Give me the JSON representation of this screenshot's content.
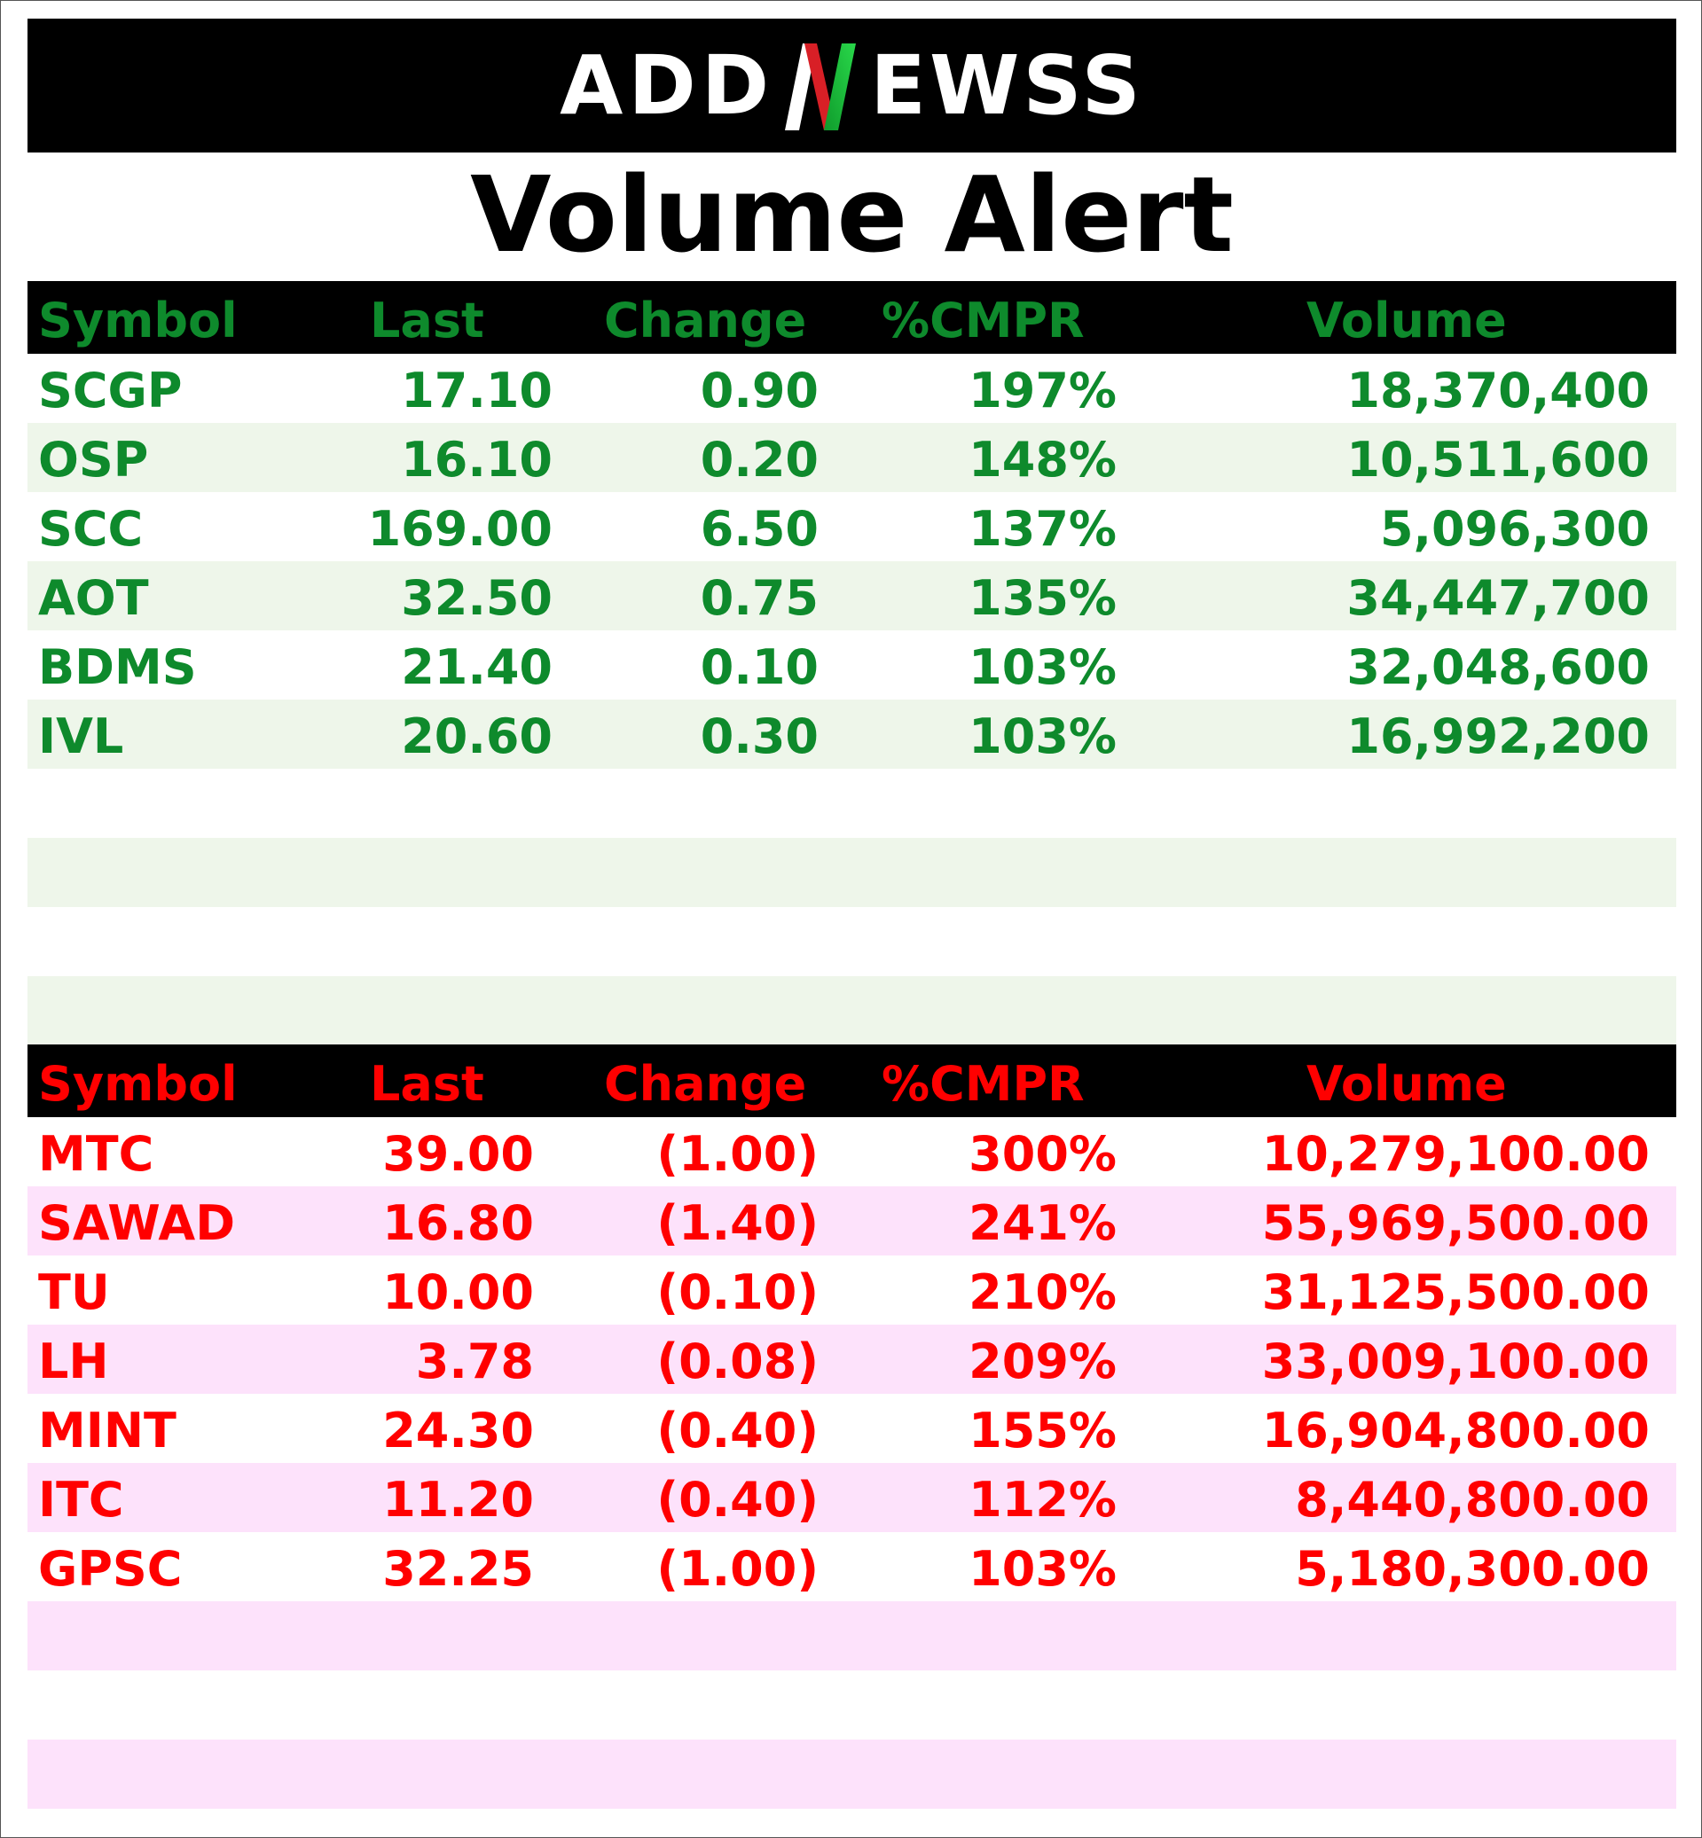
{
  "logo": {
    "text_left": "ADD",
    "text_right": "EWSS",
    "letter_n": "N",
    "colors": {
      "green": "#16b936",
      "red": "#d81f26",
      "white": "#ffffff"
    }
  },
  "title": "Volume Alert",
  "headers": {
    "symbol": "Symbol",
    "last": "Last",
    "change": "Change",
    "cmpr": "%CMPR",
    "volume": "Volume"
  },
  "gainers": {
    "color": "#0e8a2c",
    "row_tint": "#eef6ea",
    "rows": [
      {
        "symbol": "SCGP",
        "last": "17.10",
        "change": "0.90",
        "cmpr": "197%",
        "volume": "18,370,400"
      },
      {
        "symbol": "OSP",
        "last": "16.10",
        "change": "0.20",
        "cmpr": "148%",
        "volume": "10,511,600"
      },
      {
        "symbol": "SCC",
        "last": "169.00",
        "change": "6.50",
        "cmpr": "137%",
        "volume": "5,096,300"
      },
      {
        "symbol": "AOT",
        "last": "32.50",
        "change": "0.75",
        "cmpr": "135%",
        "volume": "34,447,700"
      },
      {
        "symbol": "BDMS",
        "last": "21.40",
        "change": "0.10",
        "cmpr": "103%",
        "volume": "32,048,600"
      },
      {
        "symbol": "IVL",
        "last": "20.60",
        "change": "0.30",
        "cmpr": "103%",
        "volume": "16,992,200"
      },
      {
        "symbol": "",
        "last": "",
        "change": "",
        "cmpr": "",
        "volume": ""
      },
      {
        "symbol": "",
        "last": "",
        "change": "",
        "cmpr": "",
        "volume": ""
      },
      {
        "symbol": "",
        "last": "",
        "change": "",
        "cmpr": "",
        "volume": ""
      },
      {
        "symbol": "",
        "last": "",
        "change": "",
        "cmpr": "",
        "volume": ""
      }
    ]
  },
  "losers": {
    "color": "#ff0000",
    "row_tint": "#fde2fb",
    "rows": [
      {
        "symbol": "MTC",
        "last": "39.00",
        "change": "(1.00)",
        "cmpr": "300%",
        "volume": "10,279,100.00"
      },
      {
        "symbol": "SAWAD",
        "last": "16.80",
        "change": "(1.40)",
        "cmpr": "241%",
        "volume": "55,969,500.00"
      },
      {
        "symbol": "TU",
        "last": "10.00",
        "change": "(0.10)",
        "cmpr": "210%",
        "volume": "31,125,500.00"
      },
      {
        "symbol": "LH",
        "last": "3.78",
        "change": "(0.08)",
        "cmpr": "209%",
        "volume": "33,009,100.00"
      },
      {
        "symbol": "MINT",
        "last": "24.30",
        "change": "(0.40)",
        "cmpr": "155%",
        "volume": "16,904,800.00"
      },
      {
        "symbol": "ITC",
        "last": "11.20",
        "change": "(0.40)",
        "cmpr": "112%",
        "volume": "8,440,800.00"
      },
      {
        "symbol": "GPSC",
        "last": "32.25",
        "change": "(1.00)",
        "cmpr": "103%",
        "volume": "5,180,300.00"
      },
      {
        "symbol": "",
        "last": "",
        "change": "",
        "cmpr": "",
        "volume": ""
      },
      {
        "symbol": "",
        "last": "",
        "change": "",
        "cmpr": "",
        "volume": ""
      },
      {
        "symbol": "",
        "last": "",
        "change": "",
        "cmpr": "",
        "volume": ""
      }
    ]
  }
}
